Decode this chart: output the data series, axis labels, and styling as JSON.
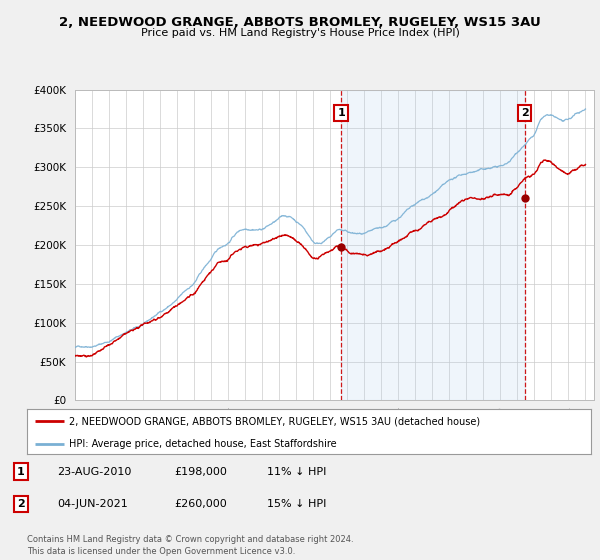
{
  "title": "2, NEEDWOOD GRANGE, ABBOTS BROMLEY, RUGELEY, WS15 3AU",
  "subtitle": "Price paid vs. HM Land Registry's House Price Index (HPI)",
  "ylim": [
    0,
    400000
  ],
  "yticks": [
    0,
    50000,
    100000,
    150000,
    200000,
    250000,
    300000,
    350000,
    400000
  ],
  "ytick_labels": [
    "£0",
    "£50K",
    "£100K",
    "£150K",
    "£200K",
    "£250K",
    "£300K",
    "£350K",
    "£400K"
  ],
  "bg_color": "#f0f0f0",
  "plot_bg_color": "#ffffff",
  "grid_color": "#cccccc",
  "hpi_color": "#7ab0d4",
  "price_color": "#cc0000",
  "shade_color": "#ddeeff",
  "transaction1_date": 2010.64,
  "transaction1_price": 198000,
  "transaction2_date": 2021.42,
  "transaction2_price": 260000,
  "legend_line1": "2, NEEDWOOD GRANGE, ABBOTS BROMLEY, RUGELEY, WS15 3AU (detached house)",
  "legend_line2": "HPI: Average price, detached house, East Staffordshire",
  "table_row1": [
    "1",
    "23-AUG-2010",
    "£198,000",
    "11% ↓ HPI"
  ],
  "table_row2": [
    "2",
    "04-JUN-2021",
    "£260,000",
    "15% ↓ HPI"
  ],
  "footer": "Contains HM Land Registry data © Crown copyright and database right 2024.\nThis data is licensed under the Open Government Licence v3.0.",
  "xmin": 1995,
  "xmax": 2025.5,
  "hpi_data": {
    "1995.0": 68000,
    "1995.25": 69000,
    "1995.5": 70000,
    "1995.75": 71000,
    "1996.0": 72000,
    "1996.25": 73500,
    "1996.5": 75000,
    "1996.75": 77000,
    "1997.0": 79000,
    "1997.25": 82000,
    "1997.5": 85000,
    "1997.75": 88000,
    "1998.0": 91000,
    "1998.25": 93000,
    "1998.5": 95000,
    "1998.75": 97000,
    "1999.0": 99000,
    "1999.25": 102000,
    "1999.5": 106000,
    "1999.75": 110000,
    "2000.0": 114000,
    "2000.25": 118000,
    "2000.5": 122000,
    "2000.75": 126000,
    "2001.0": 130000,
    "2001.25": 135000,
    "2001.5": 140000,
    "2001.75": 145000,
    "2002.0": 150000,
    "2002.25": 158000,
    "2002.5": 166000,
    "2002.75": 173000,
    "2003.0": 180000,
    "2003.25": 187000,
    "2003.5": 193000,
    "2003.75": 197000,
    "2004.0": 201000,
    "2004.25": 208000,
    "2004.5": 214000,
    "2004.75": 218000,
    "2005.0": 220000,
    "2005.25": 221000,
    "2005.5": 222000,
    "2005.75": 222000,
    "2006.0": 223000,
    "2006.25": 226000,
    "2006.5": 229000,
    "2006.75": 232000,
    "2007.0": 235000,
    "2007.25": 238000,
    "2007.5": 238000,
    "2007.75": 236000,
    "2008.0": 232000,
    "2008.25": 228000,
    "2008.5": 222000,
    "2008.75": 214000,
    "2009.0": 207000,
    "2009.25": 205000,
    "2009.5": 207000,
    "2009.75": 210000,
    "2010.0": 213000,
    "2010.25": 218000,
    "2010.5": 222000,
    "2010.75": 220000,
    "2011.0": 218000,
    "2011.25": 216000,
    "2011.5": 215000,
    "2011.75": 214000,
    "2012.0": 213000,
    "2012.25": 213000,
    "2012.5": 214000,
    "2012.75": 215000,
    "2013.0": 216000,
    "2013.25": 218000,
    "2013.5": 221000,
    "2013.75": 224000,
    "2014.0": 228000,
    "2014.25": 233000,
    "2014.5": 237000,
    "2014.75": 240000,
    "2015.0": 243000,
    "2015.25": 246000,
    "2015.5": 249000,
    "2015.75": 252000,
    "2016.0": 255000,
    "2016.25": 259000,
    "2016.5": 263000,
    "2016.75": 266000,
    "2017.0": 269000,
    "2017.25": 272000,
    "2017.5": 274000,
    "2017.75": 276000,
    "2018.0": 278000,
    "2018.25": 280000,
    "2018.5": 281000,
    "2018.75": 282000,
    "2019.0": 283000,
    "2019.25": 284000,
    "2019.5": 285000,
    "2019.75": 286000,
    "2020.0": 287000,
    "2020.25": 288000,
    "2020.5": 292000,
    "2020.75": 298000,
    "2021.0": 305000,
    "2021.25": 312000,
    "2021.5": 318000,
    "2021.75": 323000,
    "2022.0": 328000,
    "2022.25": 340000,
    "2022.5": 348000,
    "2022.75": 350000,
    "2023.0": 348000,
    "2023.25": 345000,
    "2023.5": 342000,
    "2023.75": 340000,
    "2024.0": 340000,
    "2024.25": 343000,
    "2024.5": 347000,
    "2024.75": 350000,
    "2025.0": 353000
  },
  "price_data": {
    "1995.0": 58000,
    "1995.25": 59000,
    "1995.5": 60000,
    "1995.75": 61000,
    "1996.0": 62000,
    "1996.25": 64000,
    "1996.5": 66000,
    "1996.75": 68000,
    "1997.0": 70000,
    "1997.25": 73000,
    "1997.5": 76000,
    "1997.75": 79000,
    "1998.0": 82000,
    "1998.25": 84000,
    "1998.5": 86000,
    "1998.75": 88000,
    "1999.0": 90000,
    "1999.25": 93000,
    "1999.5": 97000,
    "1999.75": 100000,
    "2000.0": 104000,
    "2000.25": 108000,
    "2000.5": 112000,
    "2000.75": 116000,
    "2001.0": 119000,
    "2001.25": 123000,
    "2001.5": 127000,
    "2001.75": 131000,
    "2002.0": 135000,
    "2002.25": 142000,
    "2002.5": 149000,
    "2002.75": 155000,
    "2003.0": 161000,
    "2003.25": 167000,
    "2003.5": 172000,
    "2003.75": 175000,
    "2004.0": 178000,
    "2004.25": 184000,
    "2004.5": 189000,
    "2004.75": 192000,
    "2005.0": 194000,
    "2005.25": 196000,
    "2005.5": 198000,
    "2005.75": 199000,
    "2006.0": 200000,
    "2006.25": 202000,
    "2006.5": 205000,
    "2006.75": 207000,
    "2007.0": 209000,
    "2007.25": 211000,
    "2007.5": 210000,
    "2007.75": 207000,
    "2008.0": 203000,
    "2008.25": 199000,
    "2008.5": 194000,
    "2008.75": 188000,
    "2009.0": 183000,
    "2009.25": 181000,
    "2009.5": 182000,
    "2009.75": 184000,
    "2010.0": 186000,
    "2010.25": 190000,
    "2010.5": 194000,
    "2010.75": 192000,
    "2011.0": 190000,
    "2011.25": 188000,
    "2011.5": 187000,
    "2011.75": 186000,
    "2012.0": 185000,
    "2012.25": 185000,
    "2012.5": 186000,
    "2012.75": 187000,
    "2013.0": 188000,
    "2013.25": 190000,
    "2013.5": 193000,
    "2013.75": 196000,
    "2014.0": 199000,
    "2014.25": 203000,
    "2014.5": 207000,
    "2014.75": 210000,
    "2015.0": 213000,
    "2015.25": 216000,
    "2015.5": 219000,
    "2015.75": 221000,
    "2016.0": 224000,
    "2016.25": 227000,
    "2016.5": 230000,
    "2016.75": 233000,
    "2017.0": 236000,
    "2017.25": 239000,
    "2017.5": 241000,
    "2017.75": 243000,
    "2018.0": 245000,
    "2018.25": 247000,
    "2018.5": 248000,
    "2018.75": 249000,
    "2019.0": 250000,
    "2019.25": 251000,
    "2019.5": 252000,
    "2019.75": 253000,
    "2020.0": 254000,
    "2020.25": 255000,
    "2020.5": 258000,
    "2020.75": 263000,
    "2021.0": 268000,
    "2021.25": 273000,
    "2021.5": 277000,
    "2021.75": 280000,
    "2022.0": 283000,
    "2022.25": 293000,
    "2022.5": 299000,
    "2022.75": 300000,
    "2023.0": 299000,
    "2023.25": 296000,
    "2023.5": 293000,
    "2023.75": 290000,
    "2024.0": 289000,
    "2024.25": 291000,
    "2024.5": 294000,
    "2024.75": 297000,
    "2025.0": 299000
  }
}
